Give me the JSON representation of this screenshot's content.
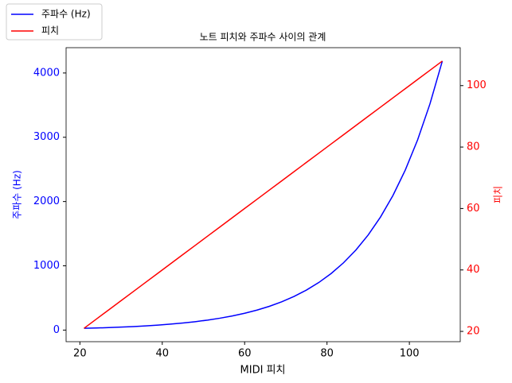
{
  "chart_data": {
    "type": "line",
    "title": "노트 피치와 주파수 사이의 관계",
    "x_label": "MIDI 피치",
    "y_label": "주파수 (Hz)",
    "y2_label": "피치",
    "x": [
      21,
      24,
      27,
      30,
      33,
      36,
      39,
      42,
      45,
      48,
      51,
      54,
      57,
      60,
      63,
      66,
      69,
      72,
      75,
      78,
      81,
      84,
      87,
      90,
      93,
      96,
      99,
      102,
      105,
      108
    ],
    "series": [
      {
        "name": "주파수 (Hz)",
        "color": "#0000ff",
        "values": [
          27.5,
          32.7,
          38.9,
          46.2,
          55.0,
          65.4,
          77.8,
          92.5,
          110.0,
          130.8,
          155.6,
          185.0,
          220.0,
          261.6,
          311.1,
          370.0,
          440.0,
          523.3,
          622.3,
          740.0,
          880.0,
          1046.5,
          1244.5,
          1480.0,
          1760.0,
          2093.0,
          2489.0,
          2960.0,
          3520.0,
          4186.0
        ]
      },
      {
        "name": "피치",
        "color": "#ff0000",
        "axis": "y2",
        "values": [
          21,
          24,
          27,
          30,
          33,
          36,
          39,
          42,
          45,
          48,
          51,
          54,
          57,
          60,
          63,
          66,
          69,
          72,
          75,
          78,
          81,
          84,
          87,
          90,
          93,
          96,
          99,
          102,
          105,
          108
        ]
      }
    ],
    "xlim": [
      16.65,
      112.35
    ],
    "xticks": [
      20,
      40,
      60,
      80,
      100
    ],
    "ylim": [
      -180.4,
      4393.9
    ],
    "yticks": [
      0,
      1000,
      2000,
      3000,
      4000
    ],
    "y2lim": [
      16.65,
      112.35
    ],
    "y2ticks": [
      20,
      40,
      60,
      80,
      100
    ],
    "legend_loc": "upper left"
  }
}
